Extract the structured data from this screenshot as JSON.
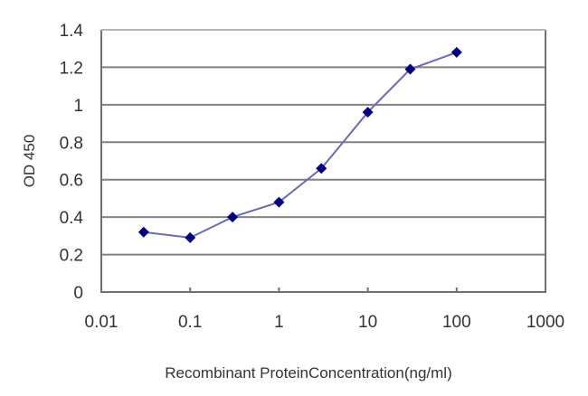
{
  "chart_data": {
    "type": "line",
    "title": "",
    "xlabel": "Recombinant ProteinConcentration(ng/ml)",
    "ylabel": "OD 450",
    "x_scale": "log",
    "xlim": [
      0.01,
      1000
    ],
    "ylim": [
      0,
      1.4
    ],
    "x_ticks": [
      "0.01",
      "0.1",
      "1",
      "10",
      "100",
      "1000"
    ],
    "y_ticks": [
      "0",
      "0.2",
      "0.4",
      "0.6",
      "0.8",
      "1",
      "1.2",
      "1.4"
    ],
    "grid": {
      "horizontal": true,
      "vertical": false
    },
    "legend": null,
    "series": [
      {
        "name": "OD 450",
        "x": [
          0.03,
          0.1,
          0.3,
          1,
          3,
          10,
          30,
          100
        ],
        "values": [
          0.32,
          0.29,
          0.4,
          0.48,
          0.66,
          0.96,
          1.19,
          1.28
        ],
        "marker": "diamond"
      }
    ]
  },
  "style": {
    "line_color": "#6a6ab8",
    "marker_color": "#000080",
    "grid_color": "#808080",
    "axis_color": "#707070",
    "text_color": "#333333"
  }
}
